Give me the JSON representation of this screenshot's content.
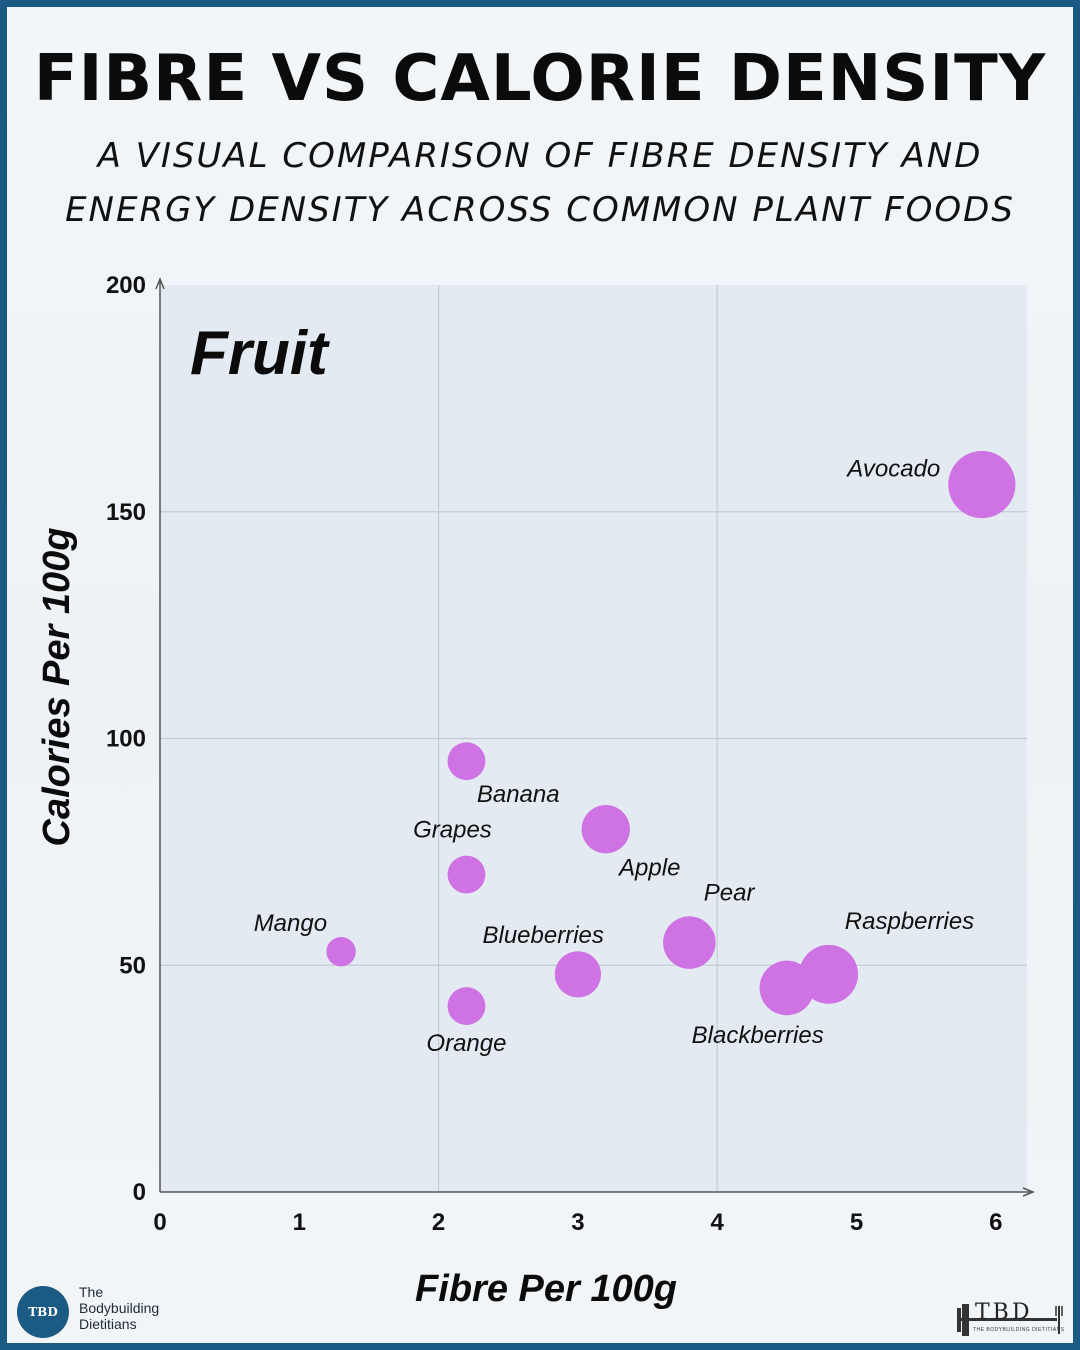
{
  "header": {
    "title": "FIBRE VS CALORIE DENSITY",
    "subtitle_line1": "A VISUAL COMPARISON OF FIBRE DENSITY AND",
    "subtitle_line2": "ENERGY DENSITY ACROSS COMMON PLANT FOODS"
  },
  "chart_data": {
    "type": "scatter",
    "panel_label": "Fruit",
    "xlabel": "Fibre Per 100g",
    "ylabel": "Calories Per 100g",
    "xlim": [
      0,
      6.2
    ],
    "ylim": [
      0,
      200
    ],
    "x_ticks": [
      0,
      1,
      2,
      3,
      4,
      5,
      6
    ],
    "y_ticks": [
      0,
      50,
      100,
      150,
      200
    ],
    "grid_x": [
      2,
      4
    ],
    "grid_y": [
      50,
      100,
      150
    ],
    "grid": true,
    "point_color": "#cf72e4",
    "points": [
      {
        "label": "Avocado",
        "x": 5.9,
        "y": 156,
        "size": 1.6,
        "label_pos": "left"
      },
      {
        "label": "Banana",
        "x": 2.2,
        "y": 95,
        "size": 0.9,
        "label_pos": "below-right"
      },
      {
        "label": "Apple",
        "x": 3.2,
        "y": 80,
        "size": 1.15,
        "label_pos": "below-right"
      },
      {
        "label": "Grapes",
        "x": 2.2,
        "y": 70,
        "size": 0.9,
        "label_pos": "above"
      },
      {
        "label": "Pear",
        "x": 3.8,
        "y": 55,
        "size": 1.25,
        "label_pos": "above-right"
      },
      {
        "label": "Mango",
        "x": 1.3,
        "y": 53,
        "size": 0.7,
        "label_pos": "above-left"
      },
      {
        "label": "Blueberries",
        "x": 3.0,
        "y": 48,
        "size": 1.1,
        "label_pos": "above-left"
      },
      {
        "label": "Raspberries",
        "x": 4.8,
        "y": 48,
        "size": 1.4,
        "label_pos": "above-right"
      },
      {
        "label": "Blackberries",
        "x": 4.5,
        "y": 45,
        "size": 1.3,
        "label_pos": "below-left"
      },
      {
        "label": "Orange",
        "x": 2.2,
        "y": 41,
        "size": 0.9,
        "label_pos": "below"
      }
    ]
  },
  "branding": {
    "left_logo_text": "TBD",
    "left_name_line1": "The",
    "left_name_line2": "Bodybuilding",
    "left_name_line3": "Dietitians",
    "right_logo_text": "TBD",
    "right_tagline": "THE BODYBUILDING DIETITIANS"
  }
}
